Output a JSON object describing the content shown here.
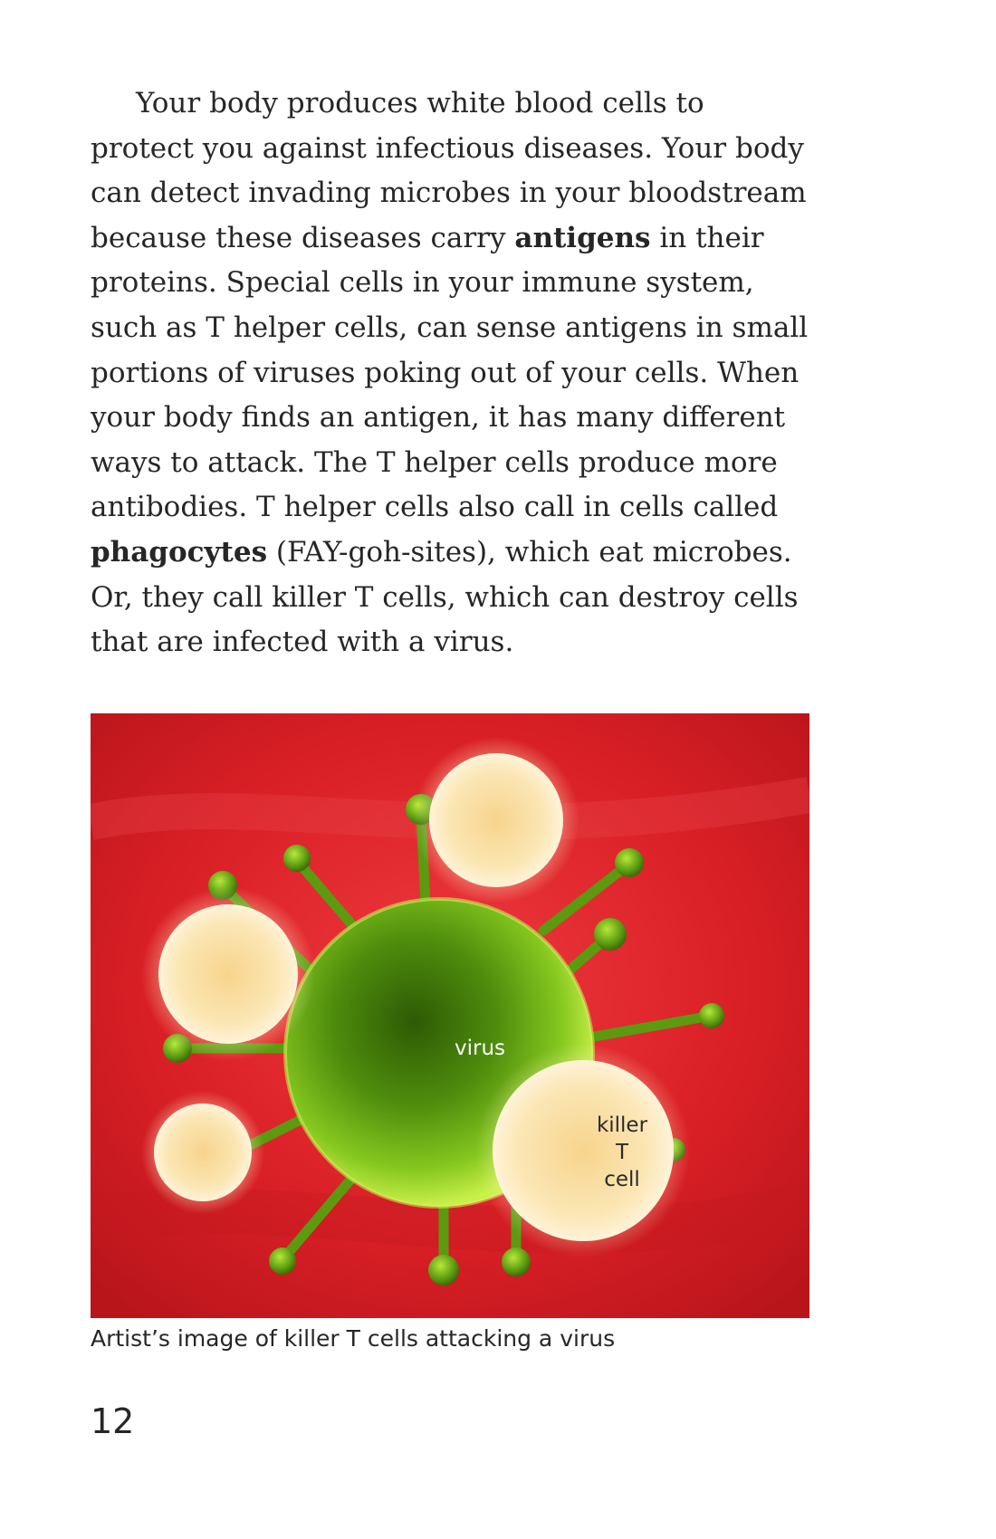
{
  "paragraph": {
    "lines": [
      [
        {
          "text": "Your body produces white blood cells to"
        }
      ],
      [
        {
          "text": "protect you against infectious diseases. Your body"
        }
      ],
      [
        {
          "text": "can detect invading microbes in your bloodstream"
        }
      ],
      [
        {
          "text": "because these diseases carry "
        },
        {
          "text": "antigens",
          "bold": true
        },
        {
          "text": " in their"
        }
      ],
      [
        {
          "text": "proteins. Special cells in your immune system,"
        }
      ],
      [
        {
          "text": "such as T helper cells, can sense antigens in small"
        }
      ],
      [
        {
          "text": "portions of viruses poking out of your cells. When"
        }
      ],
      [
        {
          "text": "your body finds an antigen, it has many different"
        }
      ],
      [
        {
          "text": "ways to attack. The T helper cells produce more"
        }
      ],
      [
        {
          "text": "antibodies. T helper cells also call in cells called"
        }
      ],
      [
        {
          "text": "phagocytes",
          "bold": true
        },
        {
          "text": " (FAY-goh-sites), which eat microbes."
        }
      ],
      [
        {
          "text": "Or, they call killer T cells, which can destroy cells"
        }
      ],
      [
        {
          "text": "that are infected with a virus."
        }
      ]
    ]
  },
  "figure": {
    "virus_label": "virus",
    "killer_label_lines": [
      "killer",
      "T",
      "cell"
    ],
    "caption": "Artist’s image of killer T cells attacking a virus",
    "colors": {
      "background": "#d71f26",
      "virus": "#7cc21b",
      "t_cell": "#f7d79a"
    }
  },
  "page_number": "12"
}
